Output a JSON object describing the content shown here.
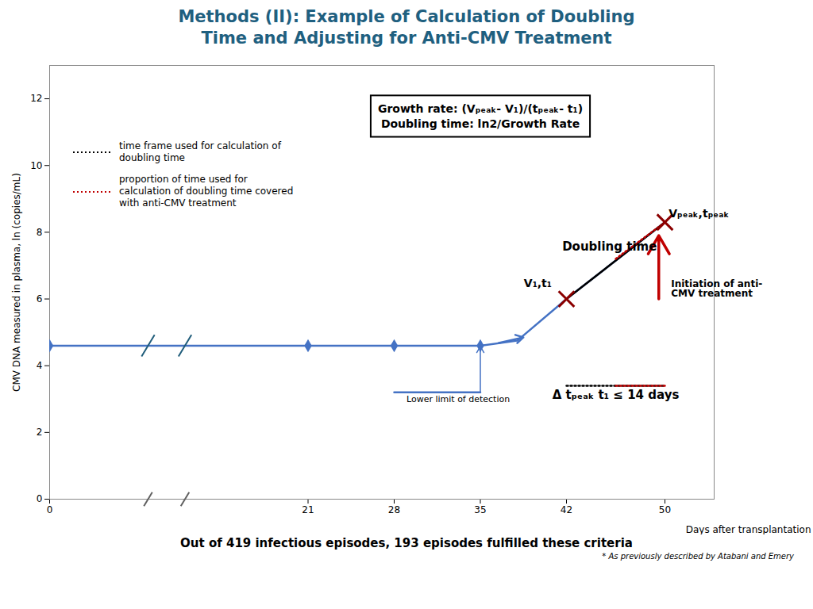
{
  "chart_data": {
    "type": "line",
    "title": "Methods (II): Example of Calculation of Doubling\nTime and Adjusting for  Anti-CMV Treatment",
    "title_color": "#1F6080",
    "caption": "Out of 419 infectious episodes, 193 episodes fulfilled these criteria",
    "footnote": "* As previously described by Atabani and Emery",
    "xlabel": "Days after transplantation",
    "ylabel": "CMV DNA measured in plasma, ln (copies/mL)",
    "xlim": [
      0,
      54
    ],
    "ylim": [
      0,
      13
    ],
    "xticks": [
      0,
      21,
      28,
      35,
      42,
      50
    ],
    "yticks": [
      0,
      2,
      4,
      6,
      8,
      10,
      12
    ],
    "grid": false,
    "legend": "upper left",
    "series": [
      {
        "x": [
          0,
          21,
          28,
          35
        ],
        "values": [
          4.6,
          4.6,
          4.6,
          4.6
        ],
        "color": "#4472C4",
        "marker": "diamond"
      },
      {
        "x": [
          35,
          38,
          42,
          50
        ],
        "values": [
          4.6,
          4.75,
          6.0,
          8.3
        ],
        "color": "#4472C4"
      },
      {
        "x": [
          42,
          50
        ],
        "values": [
          6.0,
          8.3
        ],
        "color": "#000000"
      },
      {
        "x": [
          46,
          50
        ],
        "values": [
          7.2,
          8.3
        ],
        "color": "#C00000",
        "line_style": "dotted"
      },
      {
        "type": "scatter",
        "x": [
          42,
          50
        ],
        "values": [
          6.0,
          8.3
        ],
        "color": "#8B0000",
        "marker": "x"
      },
      {
        "x": [
          28,
          35
        ],
        "values": [
          3.2,
          3.2
        ],
        "color": "#4472C4"
      },
      {
        "name": "time frame used for calculation of\ndoubling time",
        "x": [
          42,
          50
        ],
        "values": [
          3.4,
          3.4
        ],
        "color": "#000000",
        "line_style": "dotted"
      },
      {
        "name": "proportion of time used for\ncalculation of doubling time covered\nwith anti-CMV treatment",
        "x": [
          46,
          50
        ],
        "values": [
          3.4,
          3.4
        ],
        "color": "#C00000",
        "line_style": "dotted"
      }
    ],
    "arrows": [
      {
        "x1": 36.5,
        "y1": 4.68,
        "x2": 38.5,
        "y2": 4.85,
        "color": "#4472C4"
      },
      {
        "x1": 35,
        "y1": 3.22,
        "x2": 35,
        "y2": 4.58,
        "color": "#4472C4"
      },
      {
        "x1": 49.5,
        "y1": 6.0,
        "x2": 49.5,
        "y2": 7.9,
        "color": "#C00000"
      }
    ],
    "breaks": {
      "x": [
        8,
        11
      ],
      "y": 4.6
    },
    "formula": {
      "text": "Growth rate: (Vₚₑₐₖ- V₁)/(tₚₑₐₖ- t₁)\nDoubling time: ln2/Growth Rate",
      "x": 35,
      "y": 11.5
    },
    "annotations": [
      {
        "text": "V₁,t₁",
        "x": 40.8,
        "y": 6.35
      },
      {
        "text": "Vₚₑₐₖ,tₚₑₐₖ",
        "x": 50.3,
        "y": 8.45
      },
      {
        "text": "Doubling time",
        "x": 45.5,
        "y": 7.45
      },
      {
        "text": "Lower limit of detection",
        "x": 29,
        "y": 3.1
      },
      {
        "text": "Δ tₚₑₐₖ t₁ ≤ 14 days",
        "x": 46,
        "y": 3.25
      },
      {
        "text": "Initiation of anti-\nCMV treatment",
        "x": 50.5,
        "y": 6.3
      }
    ]
  }
}
